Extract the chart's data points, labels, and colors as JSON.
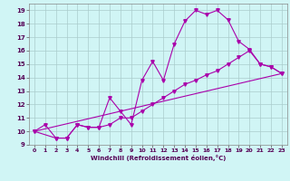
{
  "xlabel": "Windchill (Refroidissement éolien,°C)",
  "xlim": [
    -0.5,
    23.5
  ],
  "ylim": [
    9,
    19.5
  ],
  "xticks": [
    0,
    1,
    2,
    3,
    4,
    5,
    6,
    7,
    8,
    9,
    10,
    11,
    12,
    13,
    14,
    15,
    16,
    17,
    18,
    19,
    20,
    21,
    22,
    23
  ],
  "yticks": [
    9,
    10,
    11,
    12,
    13,
    14,
    15,
    16,
    17,
    18,
    19
  ],
  "bg_color": "#d0f5f5",
  "grid_color": "#aacccc",
  "line_color": "#aa00aa",
  "line1_x": [
    0,
    1,
    2,
    3,
    4,
    5,
    6,
    7,
    8,
    9,
    10,
    11,
    12,
    13,
    14,
    15,
    16,
    17,
    18,
    19,
    20,
    21,
    22,
    23
  ],
  "line1_y": [
    10.0,
    10.5,
    9.5,
    9.5,
    10.5,
    10.3,
    10.3,
    12.5,
    11.5,
    10.5,
    13.8,
    15.2,
    13.8,
    16.5,
    18.2,
    19.0,
    18.7,
    19.0,
    18.3,
    16.7,
    16.1,
    15.0,
    14.8,
    14.3
  ],
  "line2_x": [
    0,
    2,
    3,
    4,
    5,
    6,
    7,
    8,
    9,
    10,
    11,
    12,
    13,
    14,
    15,
    16,
    17,
    18,
    19,
    20,
    21,
    22,
    23
  ],
  "line2_y": [
    10.0,
    9.5,
    9.5,
    10.5,
    10.3,
    10.3,
    10.5,
    11.0,
    11.0,
    11.5,
    12.0,
    12.5,
    13.0,
    13.5,
    13.8,
    14.2,
    14.5,
    15.0,
    15.5,
    16.0,
    15.0,
    14.8,
    14.3
  ],
  "line3_x": [
    0,
    23
  ],
  "line3_y": [
    10.0,
    14.3
  ]
}
